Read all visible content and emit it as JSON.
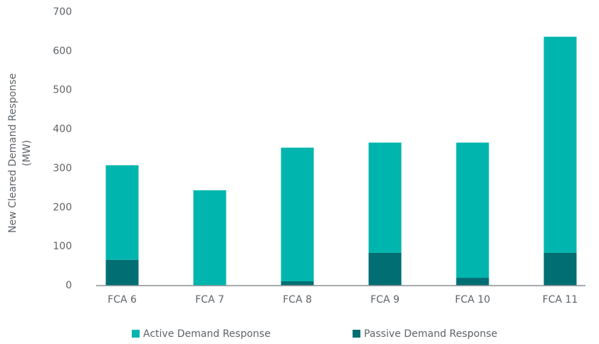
{
  "chart_data": {
    "type": "bar",
    "stacked": true,
    "ylabel": [
      "New Cleared Demand Response",
      "(MW)"
    ],
    "categories": [
      "FCA 6",
      "FCA 7",
      "FCA 8",
      "FCA 9",
      "FCA 10",
      "FCA 11"
    ],
    "series": [
      {
        "name": "Active Demand Response",
        "color": "#00b5ad",
        "values": [
          242,
          244,
          342,
          282,
          346,
          553
        ]
      },
      {
        "name": "Passive Demand Response",
        "color": "#006e72",
        "values": [
          66,
          0,
          11,
          84,
          20,
          84
        ]
      }
    ],
    "ylim": [
      0,
      700
    ],
    "yticks": [
      0,
      100,
      200,
      300,
      400,
      500,
      600,
      700
    ],
    "grid": false,
    "legend": "bottom"
  }
}
